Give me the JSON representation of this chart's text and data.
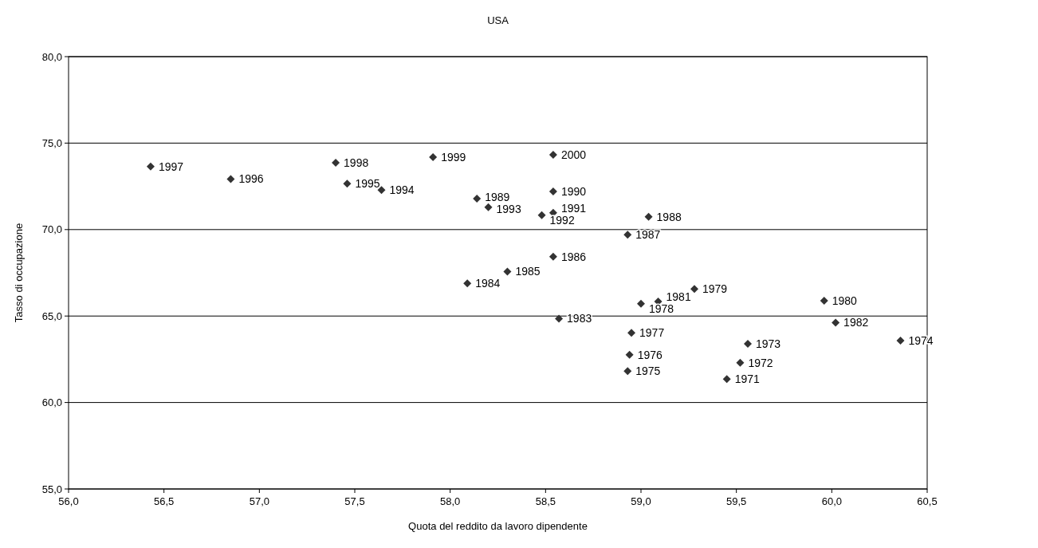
{
  "chart_data": {
    "type": "scatter",
    "title": "USA",
    "xlabel": "Quota del reddito da lavoro dipendente",
    "ylabel": "Tasso di occupazione",
    "x": [
      59.45,
      59.52,
      59.56,
      60.36,
      58.93,
      58.94,
      58.95,
      59.0,
      59.28,
      59.96,
      59.09,
      60.02,
      58.57,
      58.09,
      58.3,
      58.54,
      58.93,
      59.04,
      58.14,
      58.54,
      58.54,
      58.48,
      58.2,
      57.64,
      57.46,
      56.85,
      56.43,
      57.4,
      57.91,
      58.54
    ],
    "series": [
      {
        "color": "#333333",
        "values": [
          61.35,
          62.3,
          63.39,
          63.58,
          61.81,
          62.76,
          64.03,
          65.71,
          66.57,
          65.89,
          65.84,
          64.62,
          64.85,
          66.89,
          67.57,
          68.43,
          69.7,
          70.74,
          71.79,
          72.2,
          70.97,
          70.83,
          71.29,
          72.29,
          72.65,
          72.92,
          73.65,
          73.87,
          74.19,
          74.33
        ]
      }
    ],
    "annotations": [
      {
        "text": "1971",
        "x": 59.45,
        "y": 61.35
      },
      {
        "text": "1972",
        "x": 59.52,
        "y": 62.3
      },
      {
        "text": "1973",
        "x": 59.56,
        "y": 63.39
      },
      {
        "text": "1974",
        "x": 60.36,
        "y": 63.58
      },
      {
        "text": "1975",
        "x": 58.93,
        "y": 61.81
      },
      {
        "text": "1976",
        "x": 58.94,
        "y": 62.76
      },
      {
        "text": "1977",
        "x": 58.95,
        "y": 64.03
      },
      {
        "text": "1978",
        "x": 59.0,
        "y": 65.71
      },
      {
        "text": "1979",
        "x": 59.28,
        "y": 66.57
      },
      {
        "text": "1980",
        "x": 59.96,
        "y": 65.89
      },
      {
        "text": "1981",
        "x": 59.09,
        "y": 65.84
      },
      {
        "text": "1982",
        "x": 60.02,
        "y": 64.62
      },
      {
        "text": "1983",
        "x": 58.57,
        "y": 64.85
      },
      {
        "text": "1984",
        "x": 58.09,
        "y": 66.89
      },
      {
        "text": "1985",
        "x": 58.3,
        "y": 67.57
      },
      {
        "text": "1986",
        "x": 58.54,
        "y": 68.43
      },
      {
        "text": "1987",
        "x": 58.93,
        "y": 69.7
      },
      {
        "text": "1988",
        "x": 59.04,
        "y": 70.74
      },
      {
        "text": "1989",
        "x": 58.14,
        "y": 71.79
      },
      {
        "text": "1990",
        "x": 58.54,
        "y": 72.2
      },
      {
        "text": "1991",
        "x": 58.54,
        "y": 70.97
      },
      {
        "text": "1992",
        "x": 58.48,
        "y": 70.83
      },
      {
        "text": "1993",
        "x": 58.2,
        "y": 71.29
      },
      {
        "text": "1994",
        "x": 57.64,
        "y": 72.29
      },
      {
        "text": "1995",
        "x": 57.46,
        "y": 72.65
      },
      {
        "text": "1996",
        "x": 56.85,
        "y": 72.92
      },
      {
        "text": "1997",
        "x": 56.43,
        "y": 73.65
      },
      {
        "text": "1998",
        "x": 57.4,
        "y": 73.87
      },
      {
        "text": "1999",
        "x": 57.91,
        "y": 74.19
      },
      {
        "text": "2000",
        "x": 58.54,
        "y": 74.33
      }
    ],
    "xlim": [
      56,
      60.5
    ],
    "ylim": [
      55,
      80
    ],
    "xticks": [
      {
        "value": 56,
        "label": "56,0"
      },
      {
        "value": 56.5,
        "label": "56,5"
      },
      {
        "value": 57,
        "label": "57,0"
      },
      {
        "value": 57.5,
        "label": "57,5"
      },
      {
        "value": 58,
        "label": "58,0"
      },
      {
        "value": 58.5,
        "label": "58,5"
      },
      {
        "value": 59,
        "label": "59,0"
      },
      {
        "value": 59.5,
        "label": "59,5"
      },
      {
        "value": 60,
        "label": "60,0"
      },
      {
        "value": 60.5,
        "label": "60,5"
      }
    ],
    "yticks": [
      {
        "value": 55,
        "label": "55,0"
      },
      {
        "value": 60,
        "label": "60,0"
      },
      {
        "value": 65,
        "label": "65,0"
      },
      {
        "value": 70,
        "label": "70,0"
      },
      {
        "value": 75,
        "label": "75,0"
      },
      {
        "value": 80,
        "label": "80,0"
      }
    ],
    "grid": "y",
    "marker": "diamond"
  }
}
